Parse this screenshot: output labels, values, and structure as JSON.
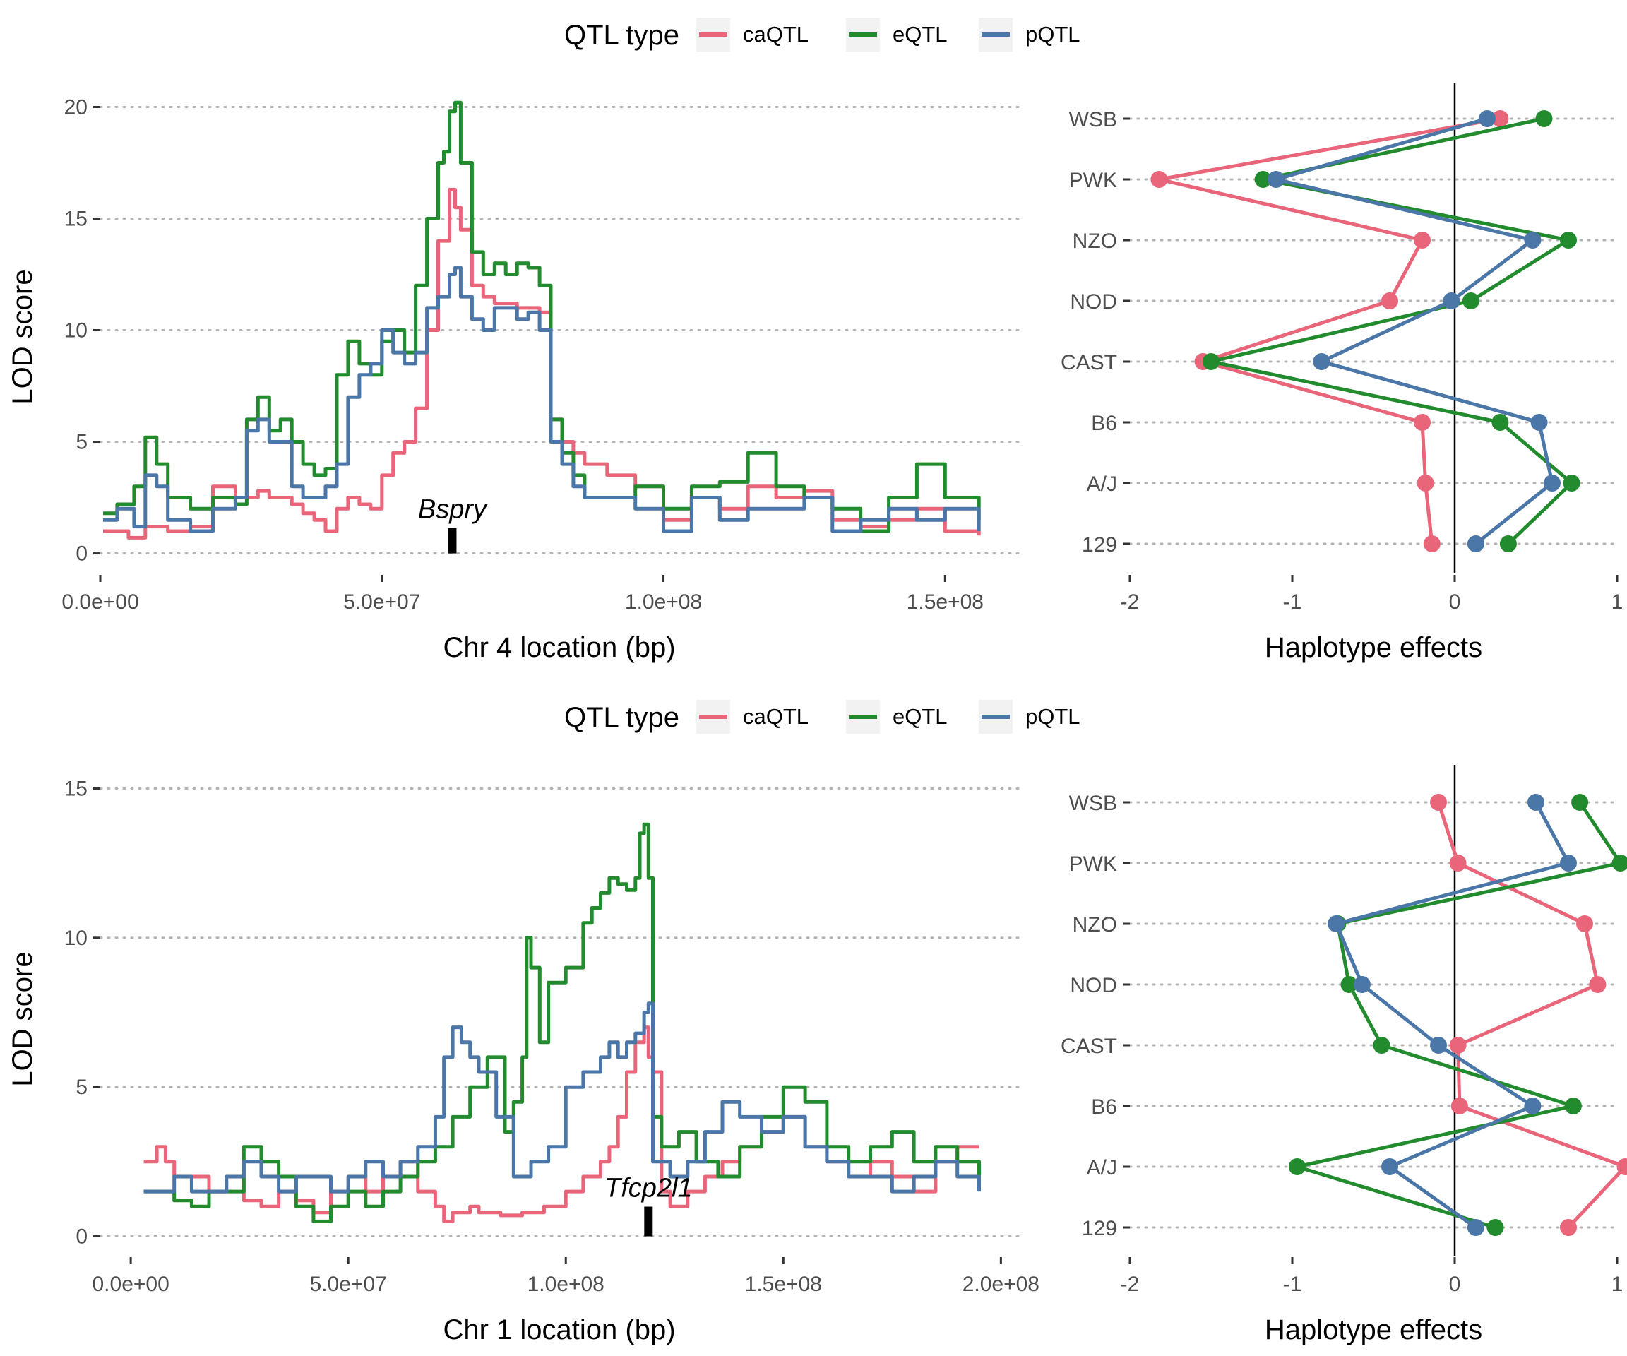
{
  "colors": {
    "caQTL": "#E8657A",
    "eQTL": "#228B2E",
    "pQTL": "#4A76A8",
    "gene": "#000000"
  },
  "chart_data": [
    {
      "type": "line",
      "legend": {
        "title": "QTL type",
        "placement": "top",
        "entries": [
          "caQTL",
          "eQTL",
          "pQTL"
        ]
      },
      "xlabel": "Chr 4 location (bp)",
      "ylabel": "LOD score",
      "xlim": [
        0,
        163000000
      ],
      "ylim": [
        -0.9,
        20.3
      ],
      "xticks": [
        0,
        50000000,
        100000000,
        150000000
      ],
      "xtick_labels": [
        "0.0e+00",
        "5.0e+07",
        "1.0e+08",
        "1.5e+08"
      ],
      "yticks": [
        0,
        5,
        10,
        15,
        20
      ],
      "ytick_labels": [
        "0",
        "5",
        "10",
        "15",
        "20"
      ],
      "gene": {
        "name": "Bspry",
        "position": 62500000
      },
      "series": [
        {
          "name": "caQTL",
          "x": [
            500000.0,
            5000000.0,
            8000000.0,
            12000000.0,
            16000000.0,
            20000000.0,
            24000000.0,
            28000000.0,
            30000000.0,
            34000000.0,
            36000000.0,
            38000000.0,
            40000000.0,
            42000000.0,
            44000000.0,
            46000000.0,
            48000000.0,
            50000000.0,
            52000000.0,
            54000000.0,
            56000000.0,
            58000000.0,
            60000000.0,
            62000000.0,
            63000000.0,
            64000000.0,
            66000000.0,
            68000000.0,
            70000000.0,
            74000000.0,
            78000000.0,
            80000000.0,
            82000000.0,
            84000000.0,
            86000000.0,
            90000000.0,
            95000000.0,
            100000000.0,
            105000000.0,
            110000000.0,
            115000000.0,
            120000000.0,
            125000000.0,
            130000000.0,
            135000000.0,
            140000000.0,
            145000000.0,
            150000000.0,
            156000000.0
          ],
          "y": [
            1.0,
            0.7,
            1.2,
            1.0,
            1.2,
            3.0,
            2.5,
            2.8,
            2.5,
            2.2,
            1.8,
            1.5,
            1.0,
            2.0,
            2.5,
            2.2,
            2.0,
            3.5,
            4.5,
            5.0,
            6.5,
            10.0,
            14.0,
            16.3,
            15.5,
            14.5,
            12.0,
            11.5,
            11.2,
            11.0,
            10.8,
            6.0,
            5.0,
            4.5,
            4.0,
            3.5,
            3.0,
            1.5,
            2.5,
            2.0,
            3.0,
            2.5,
            2.8,
            1.5,
            1.2,
            1.5,
            2.0,
            1.0,
            0.8
          ]
        },
        {
          "name": "eQTL",
          "x": [
            500000.0,
            3000000.0,
            6000000.0,
            8000000.0,
            10000000.0,
            12000000.0,
            16000000.0,
            20000000.0,
            24000000.0,
            26000000.0,
            28000000.0,
            30000000.0,
            32000000.0,
            34000000.0,
            36000000.0,
            38000000.0,
            40000000.0,
            42000000.0,
            44000000.0,
            46000000.0,
            48000000.0,
            50000000.0,
            52000000.0,
            54000000.0,
            56000000.0,
            58000000.0,
            60000000.0,
            61000000.0,
            62000000.0,
            63000000.0,
            64000000.0,
            66000000.0,
            68000000.0,
            70000000.0,
            72000000.0,
            74000000.0,
            76000000.0,
            78000000.0,
            80000000.0,
            82000000.0,
            84000000.0,
            86000000.0,
            90000000.0,
            95000000.0,
            100000000.0,
            105000000.0,
            110000000.0,
            115000000.0,
            120000000.0,
            125000000.0,
            130000000.0,
            135000000.0,
            140000000.0,
            145000000.0,
            150000000.0,
            156000000.0
          ],
          "y": [
            1.8,
            2.2,
            3.0,
            5.2,
            4.0,
            2.5,
            2.0,
            2.5,
            2.2,
            6.0,
            7.0,
            5.5,
            6.0,
            5.0,
            4.0,
            3.5,
            3.8,
            8.0,
            9.5,
            8.5,
            8.0,
            9.5,
            10.0,
            9.0,
            12.0,
            15.0,
            17.5,
            18.0,
            19.8,
            20.2,
            17.5,
            13.5,
            12.5,
            13.0,
            12.5,
            13.0,
            12.8,
            12.0,
            6.0,
            4.5,
            3.5,
            2.5,
            2.5,
            3.0,
            2.0,
            3.0,
            3.2,
            4.5,
            3.0,
            2.5,
            2.0,
            1.0,
            2.5,
            4.0,
            2.5,
            1.5
          ]
        },
        {
          "name": "pQTL",
          "x": [
            500000.0,
            3000000.0,
            6000000.0,
            8000000.0,
            10000000.0,
            12000000.0,
            16000000.0,
            20000000.0,
            24000000.0,
            26000000.0,
            28000000.0,
            30000000.0,
            34000000.0,
            36000000.0,
            38000000.0,
            40000000.0,
            42000000.0,
            44000000.0,
            46000000.0,
            48000000.0,
            50000000.0,
            52000000.0,
            54000000.0,
            56000000.0,
            58000000.0,
            60000000.0,
            62000000.0,
            63000000.0,
            64000000.0,
            66000000.0,
            68000000.0,
            70000000.0,
            74000000.0,
            76000000.0,
            78000000.0,
            80000000.0,
            82000000.0,
            84000000.0,
            86000000.0,
            90000000.0,
            95000000.0,
            100000000.0,
            105000000.0,
            110000000.0,
            115000000.0,
            120000000.0,
            125000000.0,
            130000000.0,
            135000000.0,
            140000000.0,
            145000000.0,
            150000000.0,
            156000000.0
          ],
          "y": [
            1.5,
            2.0,
            1.2,
            3.5,
            3.0,
            1.5,
            1.0,
            2.0,
            2.5,
            5.5,
            6.0,
            5.0,
            3.0,
            2.5,
            2.5,
            3.0,
            4.0,
            7.0,
            8.0,
            8.5,
            10.0,
            9.0,
            8.5,
            9.0,
            11.0,
            11.5,
            12.5,
            12.8,
            11.5,
            10.5,
            10.0,
            11.0,
            10.5,
            10.8,
            10.0,
            5.0,
            4.0,
            3.0,
            2.5,
            2.5,
            2.0,
            1.0,
            2.5,
            1.5,
            2.0,
            2.0,
            2.5,
            1.0,
            1.5,
            2.0,
            1.5,
            2.0,
            1.0
          ]
        }
      ]
    },
    {
      "type": "line",
      "xlabel": "Haplotype effects",
      "xlim": [
        -2.0,
        1.0
      ],
      "xticks": [
        -2,
        -1,
        0,
        1
      ],
      "xtick_labels": [
        "-2",
        "-1",
        "0",
        "1"
      ],
      "categories": [
        "WSB",
        "PWK",
        "NZO",
        "NOD",
        "CAST",
        "B6",
        "A/J",
        "129"
      ],
      "series": [
        {
          "name": "caQTL",
          "values": [
            0.28,
            -1.82,
            -0.2,
            -0.4,
            -1.55,
            -0.2,
            -0.18,
            -0.14
          ]
        },
        {
          "name": "eQTL",
          "values": [
            0.55,
            -1.18,
            0.7,
            0.1,
            -1.5,
            0.28,
            0.72,
            0.33
          ]
        },
        {
          "name": "pQTL",
          "values": [
            0.2,
            -1.1,
            0.48,
            -0.02,
            -0.82,
            0.52,
            0.6,
            0.13
          ]
        }
      ]
    },
    {
      "type": "line",
      "legend": {
        "title": "QTL type",
        "placement": "top",
        "entries": [
          "caQTL",
          "eQTL",
          "pQTL"
        ]
      },
      "xlabel": "Chr 1 location (bp)",
      "ylabel": "LOD score",
      "xlim": [
        -7000000,
        204000000
      ],
      "ylim": [
        -0.65,
        15.2
      ],
      "xticks": [
        0,
        50000000,
        100000000,
        150000000,
        200000000
      ],
      "xtick_labels": [
        "0.0e+00",
        "5.0e+07",
        "1.0e+08",
        "1.5e+08",
        "2.0e+08"
      ],
      "yticks": [
        0,
        5,
        10,
        15
      ],
      "ytick_labels": [
        "0",
        "5",
        "10",
        "15"
      ],
      "gene": {
        "name": "Tfcp2l1",
        "position": 119000000
      },
      "series": [
        {
          "name": "caQTL",
          "x": [
            3000000.0,
            6000000.0,
            8000000.0,
            10000000.0,
            14000000.0,
            18000000.0,
            22000000.0,
            26000000.0,
            30000000.0,
            34000000.0,
            38000000.0,
            42000000.0,
            46000000.0,
            50000000.0,
            54000000.0,
            58000000.0,
            62000000.0,
            66000000.0,
            70000000.0,
            72000000.0,
            74000000.0,
            78000000.0,
            80000000.0,
            85000000.0,
            90000000.0,
            95000000.0,
            100000000.0,
            104000000.0,
            108000000.0,
            110000000.0,
            112000000.0,
            114000000.0,
            116000000.0,
            117000000.0,
            118000000.0,
            119000000.0,
            120000000.0,
            122000000.0,
            124000000.0,
            128000000.0,
            132000000.0,
            136000000.0,
            140000000.0,
            145000000.0,
            150000000.0,
            155000000.0,
            160000000.0,
            165000000.0,
            170000000.0,
            175000000.0,
            180000000.0,
            185000000.0,
            190000000.0,
            195000000.0
          ],
          "y": [
            2.5,
            3.0,
            2.5,
            2.0,
            2.0,
            1.5,
            2.0,
            1.2,
            1.0,
            1.5,
            1.2,
            0.8,
            1.5,
            2.0,
            1.5,
            2.0,
            2.5,
            1.5,
            1.0,
            0.5,
            0.8,
            1.0,
            0.8,
            0.7,
            0.8,
            1.0,
            1.5,
            2.0,
            2.5,
            3.0,
            4.0,
            5.5,
            6.5,
            6.5,
            7.0,
            6.0,
            5.5,
            1.5,
            1.0,
            1.5,
            2.0,
            2.5,
            3.0,
            3.5,
            4.0,
            3.0,
            2.5,
            2.0,
            2.5,
            2.0,
            1.5,
            2.5,
            3.0,
            3.0
          ]
        },
        {
          "name": "eQTL",
          "x": [
            3000000.0,
            6000000.0,
            10000000.0,
            14000000.0,
            18000000.0,
            22000000.0,
            26000000.0,
            30000000.0,
            34000000.0,
            38000000.0,
            42000000.0,
            46000000.0,
            50000000.0,
            54000000.0,
            58000000.0,
            62000000.0,
            66000000.0,
            70000000.0,
            74000000.0,
            78000000.0,
            82000000.0,
            86000000.0,
            88000000.0,
            90000000.0,
            91000000.0,
            92000000.0,
            94000000.0,
            96000000.0,
            100000000.0,
            104000000.0,
            106000000.0,
            108000000.0,
            110000000.0,
            112000000.0,
            114000000.0,
            116000000.0,
            117000000.0,
            118000000.0,
            119000000.0,
            120000000.0,
            122000000.0,
            126000000.0,
            130000000.0,
            135000000.0,
            140000000.0,
            145000000.0,
            150000000.0,
            155000000.0,
            160000000.0,
            165000000.0,
            170000000.0,
            175000000.0,
            180000000.0,
            185000000.0,
            190000000.0,
            195000000.0
          ],
          "y": [
            1.5,
            1.5,
            1.2,
            1.0,
            1.5,
            1.5,
            3.0,
            2.5,
            2.0,
            1.0,
            0.5,
            1.0,
            1.5,
            1.0,
            1.5,
            2.0,
            2.5,
            3.0,
            4.0,
            5.0,
            6.0,
            3.5,
            4.5,
            6.0,
            10.0,
            9.0,
            6.5,
            8.5,
            9.0,
            10.5,
            11.0,
            11.5,
            12.0,
            11.8,
            11.6,
            12.0,
            13.5,
            13.8,
            12.0,
            4.0,
            3.0,
            3.5,
            2.5,
            2.0,
            3.0,
            4.0,
            5.0,
            4.5,
            3.0,
            2.5,
            3.0,
            3.5,
            2.5,
            3.0,
            2.5,
            2.0
          ]
        },
        {
          "name": "pQTL",
          "x": [
            3000000.0,
            6000000.0,
            10000000.0,
            14000000.0,
            18000000.0,
            22000000.0,
            26000000.0,
            30000000.0,
            34000000.0,
            38000000.0,
            42000000.0,
            46000000.0,
            50000000.0,
            54000000.0,
            58000000.0,
            62000000.0,
            66000000.0,
            70000000.0,
            72000000.0,
            74000000.0,
            76000000.0,
            78000000.0,
            80000000.0,
            84000000.0,
            88000000.0,
            92000000.0,
            96000000.0,
            100000000.0,
            104000000.0,
            108000000.0,
            110000000.0,
            112000000.0,
            114000000.0,
            116000000.0,
            118000000.0,
            119000000.0,
            120000000.0,
            124000000.0,
            128000000.0,
            132000000.0,
            136000000.0,
            140000000.0,
            145000000.0,
            150000000.0,
            155000000.0,
            160000000.0,
            165000000.0,
            170000000.0,
            175000000.0,
            180000000.0,
            185000000.0,
            190000000.0,
            195000000.0
          ],
          "y": [
            1.5,
            1.5,
            2.0,
            1.5,
            1.5,
            2.0,
            2.5,
            2.0,
            1.5,
            2.0,
            2.0,
            1.5,
            2.0,
            2.5,
            2.0,
            2.5,
            3.0,
            4.0,
            6.0,
            7.0,
            6.5,
            6.0,
            5.5,
            4.0,
            2.0,
            2.5,
            3.0,
            5.0,
            5.5,
            6.0,
            6.5,
            6.0,
            6.5,
            6.8,
            7.5,
            7.8,
            2.5,
            2.0,
            2.5,
            3.5,
            4.5,
            4.0,
            3.5,
            4.0,
            3.0,
            2.5,
            2.0,
            2.0,
            1.5,
            2.0,
            2.5,
            2.0,
            1.5
          ]
        }
      ]
    },
    {
      "type": "line",
      "xlabel": "Haplotype effects",
      "xlim": [
        -2.0,
        1.0
      ],
      "xticks": [
        -2,
        -1,
        0,
        1
      ],
      "xtick_labels": [
        "-2",
        "-1",
        "0",
        "1"
      ],
      "categories": [
        "WSB",
        "PWK",
        "NZO",
        "NOD",
        "CAST",
        "B6",
        "A/J",
        "129"
      ],
      "series": [
        {
          "name": "caQTL",
          "values": [
            -0.1,
            0.02,
            0.8,
            0.88,
            0.02,
            0.03,
            1.05,
            0.7
          ]
        },
        {
          "name": "eQTL",
          "values": [
            0.77,
            1.02,
            -0.72,
            -0.65,
            -0.45,
            0.73,
            -0.97,
            0.25
          ]
        },
        {
          "name": "pQTL",
          "values": [
            0.5,
            0.7,
            -0.73,
            -0.57,
            -0.1,
            0.48,
            -0.4,
            0.13
          ]
        }
      ]
    }
  ]
}
